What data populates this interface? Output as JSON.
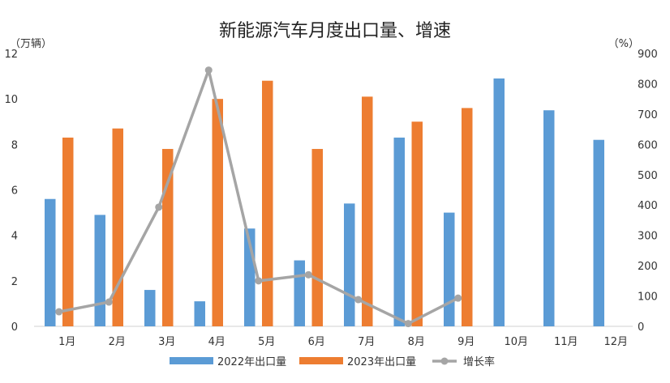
{
  "chart_data": {
    "type": "bar",
    "title": "新能源汽车月度出口量、增速",
    "left_unit": "（万辆）",
    "right_unit": "（%）",
    "categories": [
      "1月",
      "2月",
      "3月",
      "4月",
      "5月",
      "6月",
      "7月",
      "8月",
      "9月",
      "10月",
      "11月",
      "12月"
    ],
    "ylim": [
      0,
      12
    ],
    "yticks": [
      "0",
      "2",
      "4",
      "6",
      "8",
      "10",
      "12"
    ],
    "y2lim": [
      0,
      900
    ],
    "y2ticks": [
      "0",
      "100",
      "200",
      "300",
      "400",
      "500",
      "600",
      "700",
      "800",
      "900"
    ],
    "series": [
      {
        "name": "2022年出口量",
        "kind": "bar",
        "axis": "left",
        "color": "#5b9bd5",
        "values": [
          5.6,
          4.9,
          1.6,
          1.1,
          4.3,
          2.9,
          5.4,
          8.3,
          5.0,
          10.9,
          9.5,
          8.2
        ]
      },
      {
        "name": "2023年出口量",
        "kind": "bar",
        "axis": "left",
        "color": "#ed7d31",
        "values": [
          8.3,
          8.7,
          7.8,
          10.0,
          10.8,
          7.8,
          10.1,
          9.0,
          9.6,
          null,
          null,
          null
        ]
      },
      {
        "name": "增长率",
        "kind": "line",
        "axis": "right",
        "color": "#a5a5a5",
        "values": [
          48,
          80,
          393,
          845,
          150,
          170,
          88,
          9,
          93,
          null,
          null,
          null
        ]
      }
    ],
    "grid": false,
    "legend": "bottom"
  }
}
